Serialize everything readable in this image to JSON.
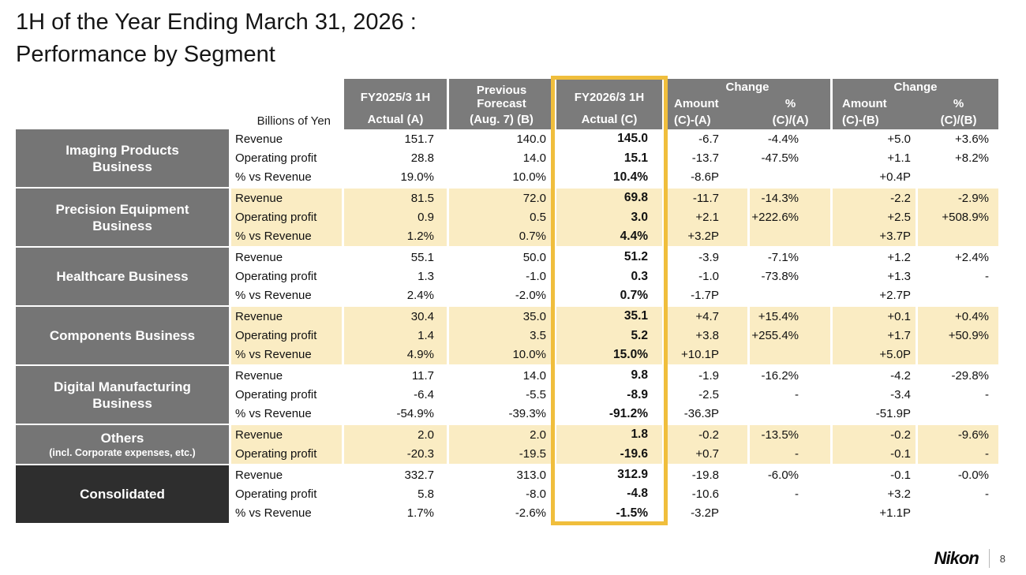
{
  "title": {
    "line1": "1H of the Year Ending March 31, 2026 :",
    "line2": "Performance by Segment"
  },
  "colors": {
    "header_grey": "#7b7b7b",
    "segment_grey": "#757575",
    "consolidated_dark": "#2e2e2e",
    "row_cream": "#faecc3",
    "highlight_gold": "#f0be3c"
  },
  "table": {
    "unit_label": "Billions of Yen",
    "header": {
      "col_a": {
        "line1": "FY2025/3 1H",
        "line2": "Actual (A)"
      },
      "col_b": {
        "line1": "Previous\nForecast",
        "line2": "(Aug. 7) (B)"
      },
      "col_c": {
        "line1": "FY2026/3 1H",
        "line2": "Actual (C)"
      },
      "change_a": {
        "title": "Change",
        "amount_label": "Amount",
        "amount_sub": "(C)-(A)",
        "pct_label": "%",
        "pct_sub": "(C)/(A)"
      },
      "change_b": {
        "title": "Change",
        "amount_label": "Amount",
        "amount_sub": "(C)-(B)",
        "pct_label": "%",
        "pct_sub": "(C)/(B)"
      }
    },
    "segments": [
      {
        "name": "Imaging Products\nBusiness",
        "tone": "white",
        "dark": false,
        "rows": [
          {
            "metric": "Revenue",
            "a": "151.7",
            "b": "140.0",
            "c": "145.0",
            "chg_a_amt": "-6.7",
            "chg_a_pct": "-4.4%",
            "chg_b_amt": "+5.0",
            "chg_b_pct": "+3.6%"
          },
          {
            "metric": "Operating profit",
            "a": "28.8",
            "b": "14.0",
            "c": "15.1",
            "chg_a_amt": "-13.7",
            "chg_a_pct": "-47.5%",
            "chg_b_amt": "+1.1",
            "chg_b_pct": "+8.2%"
          },
          {
            "metric": "% vs Revenue",
            "a": "19.0%",
            "b": "10.0%",
            "c": "10.4%",
            "chg_a_amt": "-8.6P",
            "chg_a_pct": "",
            "chg_b_amt": "+0.4P",
            "chg_b_pct": ""
          }
        ]
      },
      {
        "name": "Precision Equipment\nBusiness",
        "tone": "cream",
        "dark": false,
        "rows": [
          {
            "metric": "Revenue",
            "a": "81.5",
            "b": "72.0",
            "c": "69.8",
            "chg_a_amt": "-11.7",
            "chg_a_pct": "-14.3%",
            "chg_b_amt": "-2.2",
            "chg_b_pct": "-2.9%"
          },
          {
            "metric": "Operating profit",
            "a": "0.9",
            "b": "0.5",
            "c": "3.0",
            "chg_a_amt": "+2.1",
            "chg_a_pct": "+222.6%",
            "chg_b_amt": "+2.5",
            "chg_b_pct": "+508.9%"
          },
          {
            "metric": "% vs Revenue",
            "a": "1.2%",
            "b": "0.7%",
            "c": "4.4%",
            "chg_a_amt": "+3.2P",
            "chg_a_pct": "",
            "chg_b_amt": "+3.7P",
            "chg_b_pct": ""
          }
        ]
      },
      {
        "name": "Healthcare Business",
        "tone": "white",
        "dark": false,
        "rows": [
          {
            "metric": "Revenue",
            "a": "55.1",
            "b": "50.0",
            "c": "51.2",
            "chg_a_amt": "-3.9",
            "chg_a_pct": "-7.1%",
            "chg_b_amt": "+1.2",
            "chg_b_pct": "+2.4%"
          },
          {
            "metric": "Operating profit",
            "a": "1.3",
            "b": "-1.0",
            "c": "0.3",
            "chg_a_amt": "-1.0",
            "chg_a_pct": "-73.8%",
            "chg_b_amt": "+1.3",
            "chg_b_pct": "-"
          },
          {
            "metric": "% vs Revenue",
            "a": "2.4%",
            "b": "-2.0%",
            "c": "0.7%",
            "chg_a_amt": "-1.7P",
            "chg_a_pct": "",
            "chg_b_amt": "+2.7P",
            "chg_b_pct": ""
          }
        ]
      },
      {
        "name": "Components Business",
        "tone": "cream",
        "dark": false,
        "rows": [
          {
            "metric": "Revenue",
            "a": "30.4",
            "b": "35.0",
            "c": "35.1",
            "chg_a_amt": "+4.7",
            "chg_a_pct": "+15.4%",
            "chg_b_amt": "+0.1",
            "chg_b_pct": "+0.4%"
          },
          {
            "metric": "Operating profit",
            "a": "1.4",
            "b": "3.5",
            "c": "5.2",
            "chg_a_amt": "+3.8",
            "chg_a_pct": "+255.4%",
            "chg_b_amt": "+1.7",
            "chg_b_pct": "+50.9%"
          },
          {
            "metric": "% vs Revenue",
            "a": "4.9%",
            "b": "10.0%",
            "c": "15.0%",
            "chg_a_amt": "+10.1P",
            "chg_a_pct": "",
            "chg_b_amt": "+5.0P",
            "chg_b_pct": ""
          }
        ]
      },
      {
        "name": "Digital Manufacturing\nBusiness",
        "tone": "white",
        "dark": false,
        "rows": [
          {
            "metric": "Revenue",
            "a": "11.7",
            "b": "14.0",
            "c": "9.8",
            "chg_a_amt": "-1.9",
            "chg_a_pct": "-16.2%",
            "chg_b_amt": "-4.2",
            "chg_b_pct": "-29.8%"
          },
          {
            "metric": "Operating profit",
            "a": "-6.4",
            "b": "-5.5",
            "c": "-8.9",
            "chg_a_amt": "-2.5",
            "chg_a_pct": "-",
            "chg_b_amt": "-3.4",
            "chg_b_pct": "-"
          },
          {
            "metric": "% vs Revenue",
            "a": "-54.9%",
            "b": "-39.3%",
            "c": "-91.2%",
            "chg_a_amt": "-36.3P",
            "chg_a_pct": "",
            "chg_b_amt": "-51.9P",
            "chg_b_pct": ""
          }
        ]
      },
      {
        "name": "Others",
        "sub": "(incl. Corporate expenses, etc.)",
        "tone": "cream",
        "dark": false,
        "rows": [
          {
            "metric": "Revenue",
            "a": "2.0",
            "b": "2.0",
            "c": "1.8",
            "chg_a_amt": "-0.2",
            "chg_a_pct": "-13.5%",
            "chg_b_amt": "-0.2",
            "chg_b_pct": "-9.6%"
          },
          {
            "metric": "Operating profit",
            "a": "-20.3",
            "b": "-19.5",
            "c": "-19.6",
            "chg_a_amt": "+0.7",
            "chg_a_pct": "-",
            "chg_b_amt": "-0.1",
            "chg_b_pct": "-"
          }
        ]
      },
      {
        "name": "Consolidated",
        "tone": "white",
        "dark": true,
        "rows": [
          {
            "metric": "Revenue",
            "a": "332.7",
            "b": "313.0",
            "c": "312.9",
            "chg_a_amt": "-19.8",
            "chg_a_pct": "-6.0%",
            "chg_b_amt": "-0.1",
            "chg_b_pct": "-0.0%"
          },
          {
            "metric": "Operating profit",
            "a": "5.8",
            "b": "-8.0",
            "c": "-4.8",
            "chg_a_amt": "-10.6",
            "chg_a_pct": "-",
            "chg_b_amt": "+3.2",
            "chg_b_pct": "-"
          },
          {
            "metric": "% vs Revenue",
            "a": "1.7%",
            "b": "-2.6%",
            "c": "-1.5%",
            "chg_a_amt": "-3.2P",
            "chg_a_pct": "",
            "chg_b_amt": "+1.1P",
            "chg_b_pct": ""
          }
        ]
      }
    ]
  },
  "footer": {
    "logo": "Nikon",
    "page": "8"
  }
}
